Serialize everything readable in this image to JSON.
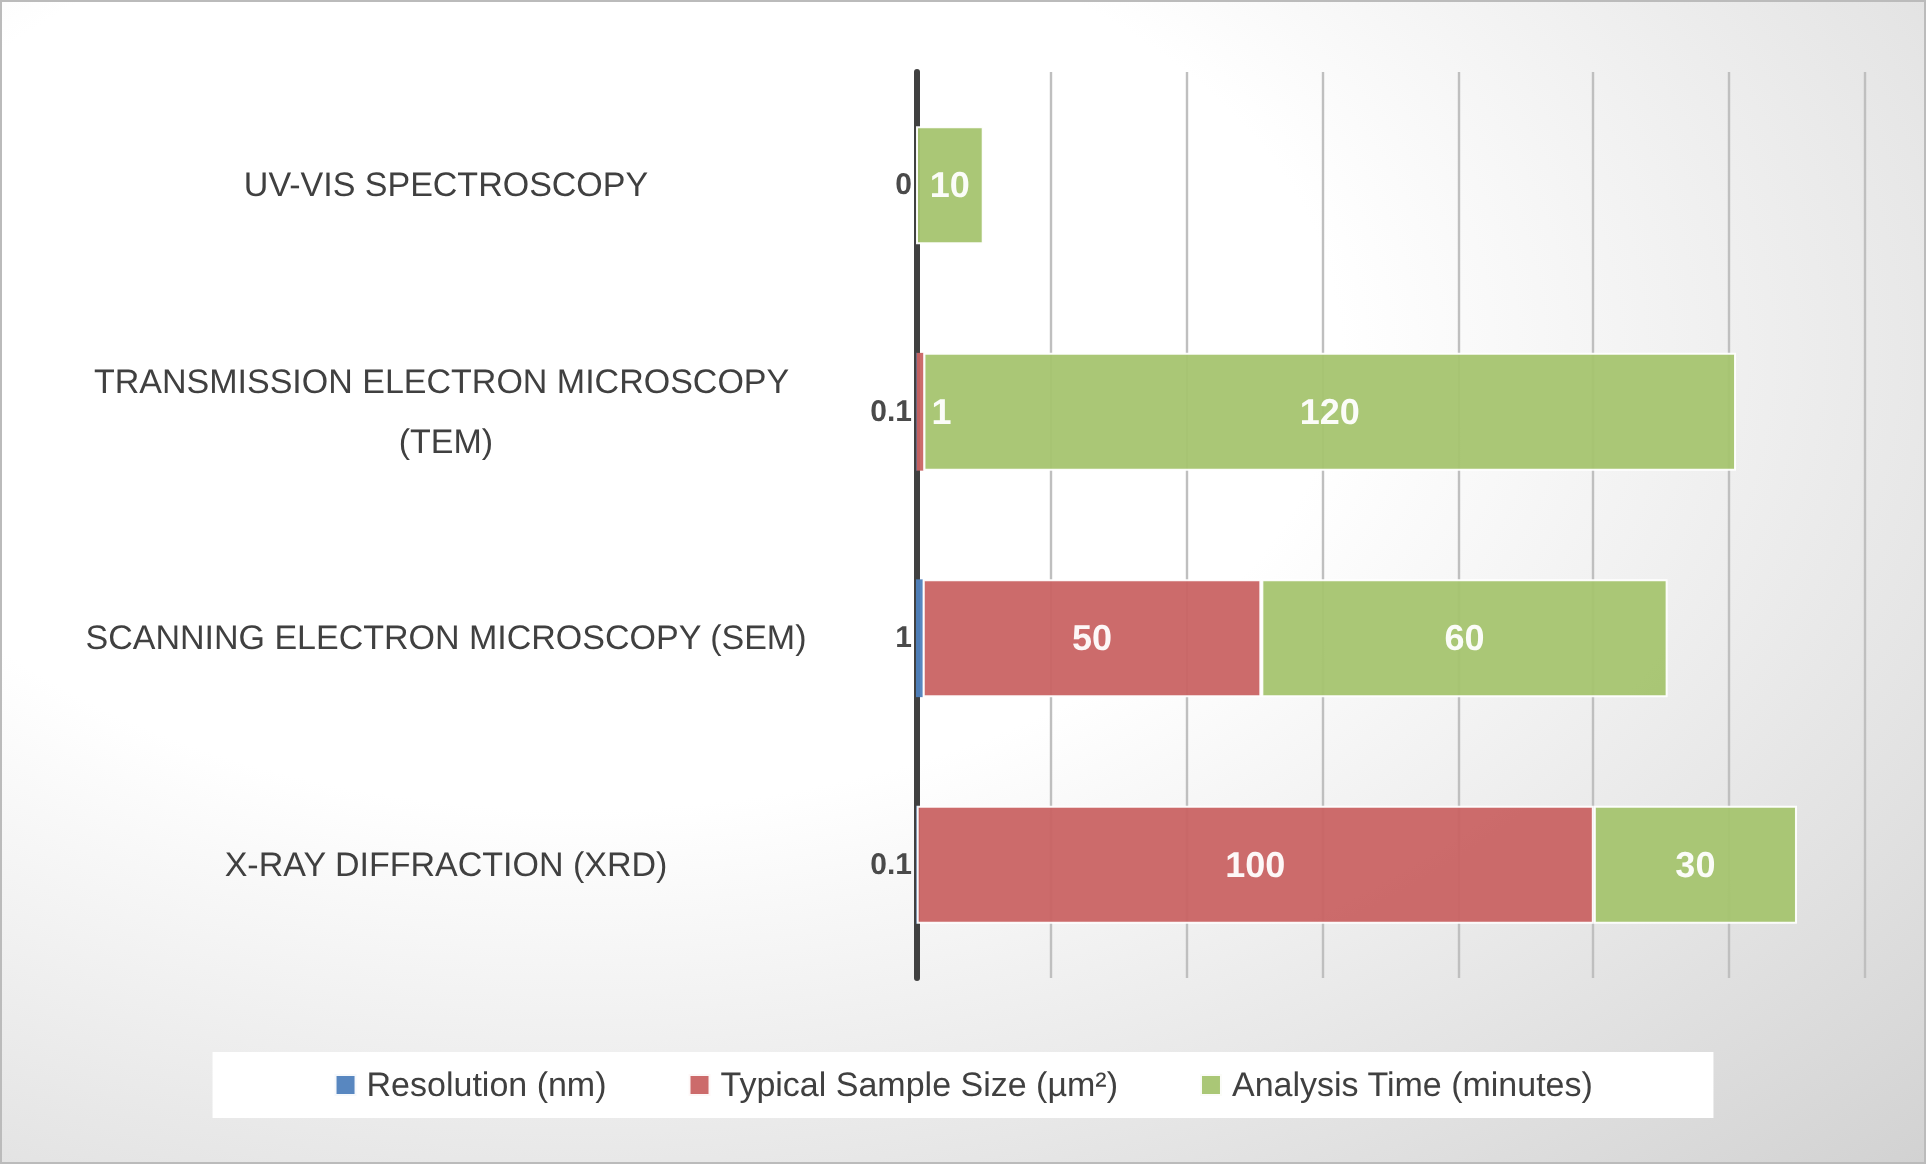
{
  "chart_data": {
    "type": "bar",
    "orientation": "horizontal",
    "stacked": true,
    "categories": [
      "UV-VIS SPECTROSCOPY",
      "TRANSMISSION ELECTRON MICROSCOPY (TEM)",
      "SCANNING ELECTRON MICROSCOPY (SEM)",
      "X-RAY DIFFRACTION (XRD)"
    ],
    "series": [
      {
        "name": "Resolution (nm)",
        "color": "#4f81bd",
        "values": [
          0,
          0.1,
          1,
          0.1
        ],
        "value_labels": [
          "0",
          "0.1",
          "1",
          "0.1"
        ]
      },
      {
        "name": "Typical Sample Size (µm²)",
        "color": "#c96363",
        "values": [
          null,
          1,
          50,
          100
        ]
      },
      {
        "name": "Analysis Time (minutes)",
        "color": "#a5c46f",
        "values": [
          10,
          120,
          60,
          30
        ]
      }
    ],
    "xlim": [
      0,
      140
    ],
    "xticks": [
      {
        "value": 0,
        "label": null
      },
      {
        "value": 20,
        "label": null
      },
      {
        "value": 40,
        "label": null
      },
      {
        "value": 60,
        "label": null
      },
      {
        "value": 80,
        "label": null
      },
      {
        "value": 100,
        "label": null
      },
      {
        "value": 120,
        "label": null
      },
      {
        "value": 140,
        "label": null
      }
    ],
    "grid": "x",
    "tick_labels": "y",
    "legend": "bottom",
    "data_labels": true
  }
}
